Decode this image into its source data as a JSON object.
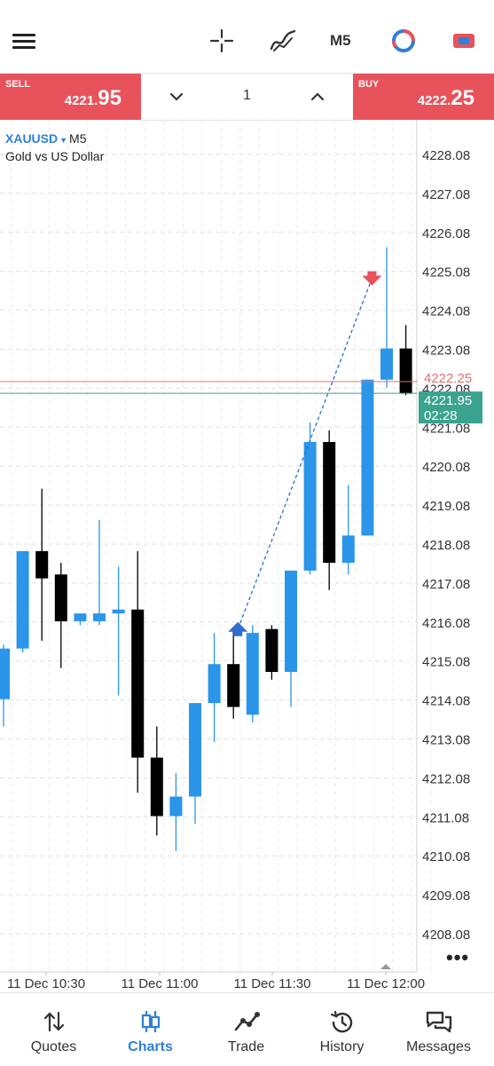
{
  "toolbar": {
    "menu_icon": "hamburger-icon",
    "crosshair_icon": "crosshair-icon",
    "indicators_icon": "indicators-icon",
    "timeframe": "M5",
    "objects_icon": "objects-icon",
    "chart_settings_icon": "chart-color-icon"
  },
  "trade": {
    "sell_label": "SELL",
    "sell_price_prefix": "4221.",
    "sell_price_big": "95",
    "buy_label": "BUY",
    "buy_price_prefix": "4222.",
    "buy_price_big": "25",
    "quantity": "1",
    "sell_color": "#e8525a",
    "buy_color": "#e8525a"
  },
  "chart": {
    "symbol": "XAUUSD",
    "timeframe": "M5",
    "description": "Gold vs US Dollar",
    "ask_label": "4222.25",
    "bid_label": "4221.95",
    "countdown": "02:28",
    "up_color": "#2b95e9",
    "down_color": "#000000",
    "ask_line_color": "#e07070",
    "bid_line_color": "#3aa38f"
  },
  "chart_data": {
    "type": "candlestick",
    "y_ticks": [
      "4228.08",
      "4227.08",
      "4226.08",
      "4225.08",
      "4224.08",
      "4223.08",
      "4222.08",
      "4221.08",
      "4220.08",
      "4219.08",
      "4218.08",
      "4217.08",
      "4216.08",
      "4215.08",
      "4214.08",
      "4213.08",
      "4212.08",
      "4211.08",
      "4210.08",
      "4209.08",
      "4208.08"
    ],
    "x_ticks": [
      "11 Dec 10:30",
      "11 Dec 11:00",
      "11 Dec 11:30",
      "11 Dec 12:00"
    ],
    "ylim": [
      4207.2,
      4229.2
    ],
    "grid": true,
    "candles": [
      {
        "o": 4214.1,
        "h": 4215.5,
        "l": 4213.4,
        "c": 4215.4
      },
      {
        "o": 4215.4,
        "h": 4217.9,
        "l": 4215.3,
        "c": 4217.9
      },
      {
        "o": 4217.9,
        "h": 4219.5,
        "l": 4215.6,
        "c": 4217.2
      },
      {
        "o": 4217.3,
        "h": 4217.6,
        "l": 4214.9,
        "c": 4216.1
      },
      {
        "o": 4216.1,
        "h": 4216.3,
        "l": 4216.0,
        "c": 4216.3
      },
      {
        "o": 4216.1,
        "h": 4218.7,
        "l": 4216.0,
        "c": 4216.3
      },
      {
        "o": 4216.3,
        "h": 4217.5,
        "l": 4214.2,
        "c": 4216.4
      },
      {
        "o": 4216.4,
        "h": 4217.9,
        "l": 4211.7,
        "c": 4212.6
      },
      {
        "o": 4212.6,
        "h": 4213.4,
        "l": 4210.6,
        "c": 4211.1
      },
      {
        "o": 4211.1,
        "h": 4212.2,
        "l": 4210.2,
        "c": 4211.6
      },
      {
        "o": 4211.6,
        "h": 4214.0,
        "l": 4210.9,
        "c": 4214.0
      },
      {
        "o": 4214.0,
        "h": 4215.8,
        "l": 4213.0,
        "c": 4215.0
      },
      {
        "o": 4215.0,
        "h": 4215.9,
        "l": 4213.6,
        "c": 4213.9
      },
      {
        "o": 4213.7,
        "h": 4216.0,
        "l": 4213.5,
        "c": 4215.8
      },
      {
        "o": 4215.9,
        "h": 4216.0,
        "l": 4214.6,
        "c": 4214.8
      },
      {
        "o": 4214.8,
        "h": 4217.4,
        "l": 4213.9,
        "c": 4217.4
      },
      {
        "o": 4217.4,
        "h": 4221.2,
        "l": 4217.3,
        "c": 4220.7
      },
      {
        "o": 4220.7,
        "h": 4221.0,
        "l": 4216.9,
        "c": 4217.6
      },
      {
        "o": 4217.6,
        "h": 4219.6,
        "l": 4217.3,
        "c": 4218.3
      },
      {
        "o": 4218.3,
        "h": 4222.3,
        "l": 4218.3,
        "c": 4222.3
      },
      {
        "o": 4222.3,
        "h": 4225.7,
        "l": 4222.1,
        "c": 4223.1
      },
      {
        "o": 4223.1,
        "h": 4223.7,
        "l": 4221.9,
        "c": 4221.95
      }
    ]
  },
  "nav": {
    "items": [
      {
        "label": "Quotes",
        "icon": "quotes-icon"
      },
      {
        "label": "Charts",
        "icon": "charts-icon"
      },
      {
        "label": "Trade",
        "icon": "trade-icon"
      },
      {
        "label": "History",
        "icon": "history-icon"
      },
      {
        "label": "Messages",
        "icon": "messages-icon"
      }
    ],
    "active": "Charts",
    "active_color": "#2f7fd8"
  }
}
